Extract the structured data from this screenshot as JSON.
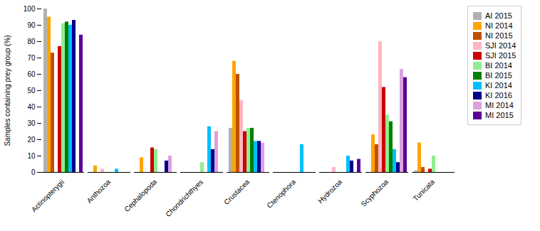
{
  "chart_data": {
    "type": "bar",
    "ylabel": "Samples containing prey group (%)",
    "categories": [
      "Actinopterygii",
      "Anthozoa",
      "Cephalopoda",
      "Chondrichthyes",
      "Crustacea",
      "Ctenophora",
      "Hydrozoa",
      "Scyphozoa",
      "Tunicata"
    ],
    "series": [
      {
        "name": "AI 2015",
        "color": "#b0b0b0",
        "values": [
          100,
          0,
          0,
          0,
          27,
          0,
          0,
          0,
          1
        ]
      },
      {
        "name": "NI 2014",
        "color": "#ffa500",
        "values": [
          95,
          4,
          9,
          0,
          68,
          0,
          0,
          23,
          18
        ]
      },
      {
        "name": "NI 2015",
        "color": "#c05000",
        "values": [
          73,
          0,
          0,
          0,
          60,
          0,
          0,
          17,
          3
        ]
      },
      {
        "name": "SJI 2014",
        "color": "#ffb6c1",
        "values": [
          0,
          2,
          0,
          0,
          44,
          0,
          3,
          80,
          0
        ]
      },
      {
        "name": "SJI 2015",
        "color": "#cc0000",
        "values": [
          77,
          0,
          15,
          0,
          25,
          0,
          0,
          52,
          2
        ]
      },
      {
        "name": "BI 2014",
        "color": "#90ee90",
        "values": [
          91,
          0,
          14,
          6,
          27,
          0,
          0,
          35,
          10
        ]
      },
      {
        "name": "BI 2015",
        "color": "#008000",
        "values": [
          92,
          0,
          0,
          0,
          27,
          0,
          0,
          31,
          0
        ]
      },
      {
        "name": "KI 2014",
        "color": "#00bfff",
        "values": [
          90,
          2,
          0,
          28,
          19,
          17,
          10,
          14,
          0
        ]
      },
      {
        "name": "KI 2016",
        "color": "#00008b",
        "values": [
          93,
          0,
          7,
          14,
          19,
          0,
          7,
          6,
          0
        ]
      },
      {
        "name": "MI 2014",
        "color": "#dda0dd",
        "values": [
          0,
          0,
          10,
          25,
          18,
          0,
          0,
          63,
          0
        ]
      },
      {
        "name": "MI 2015",
        "color": "#5b0096",
        "values": [
          84,
          0,
          0,
          0,
          0,
          0,
          8,
          58,
          0
        ]
      }
    ],
    "ylim": [
      0,
      100
    ],
    "yticks": [
      0,
      10,
      20,
      30,
      40,
      50,
      60,
      70,
      80,
      90,
      100
    ],
    "grid": false,
    "legend": "right"
  }
}
